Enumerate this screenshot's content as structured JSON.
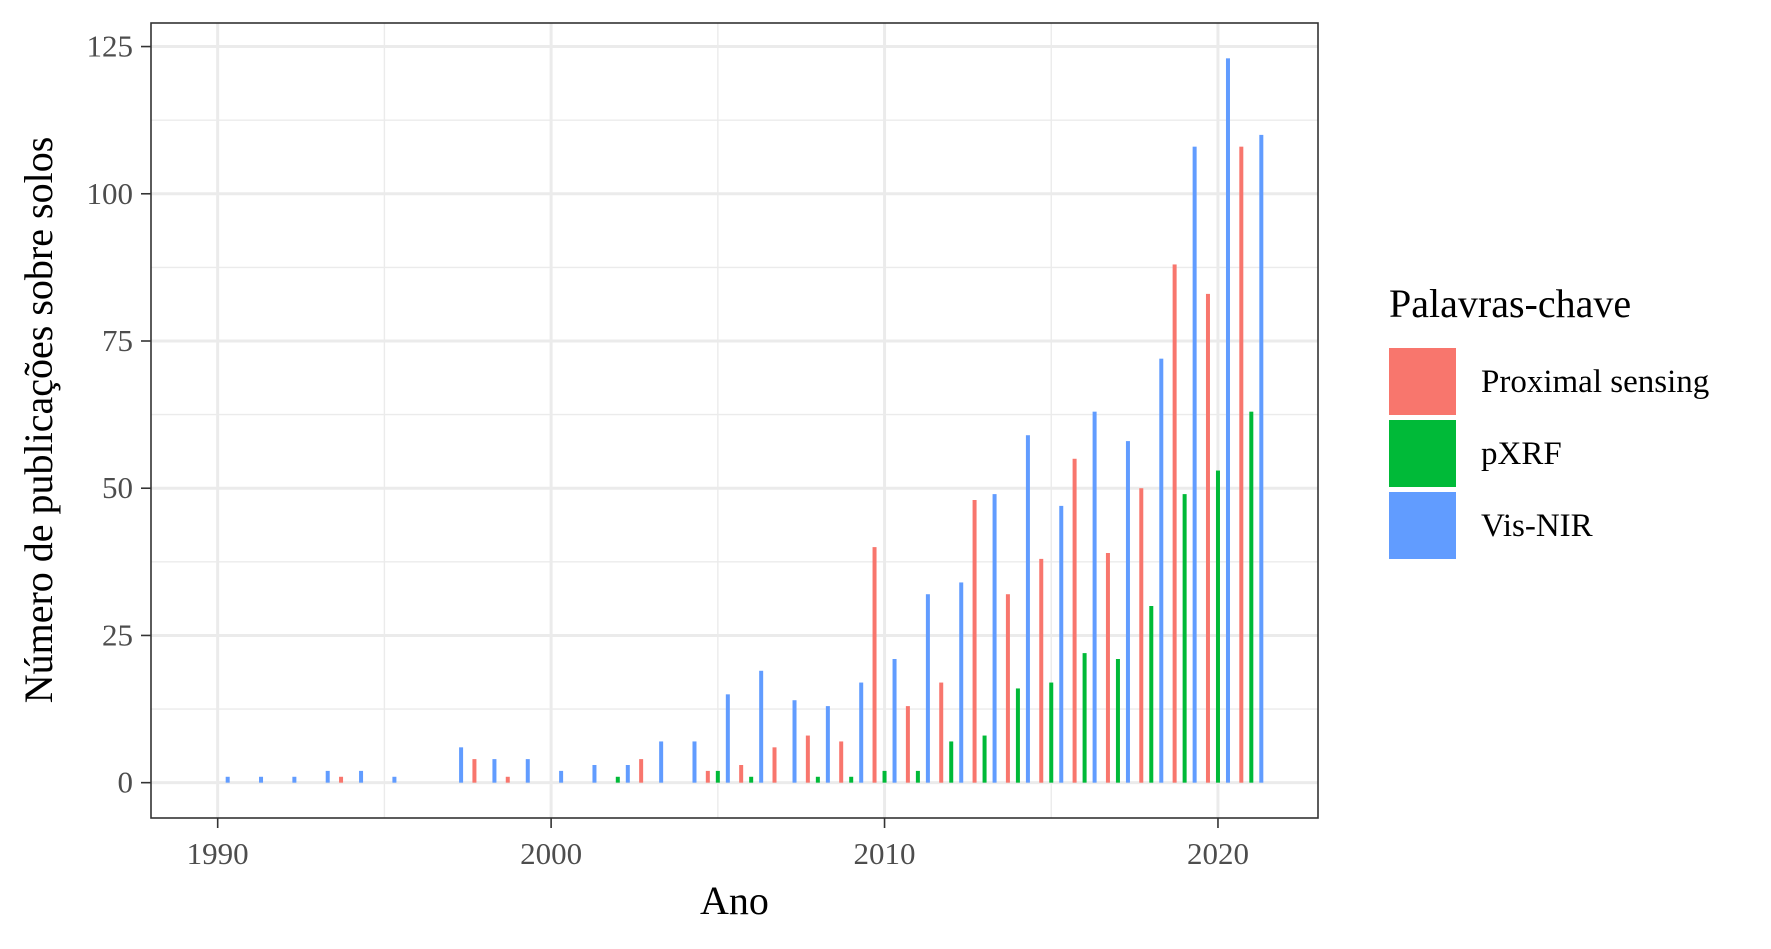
{
  "chart_data": {
    "type": "bar",
    "title": "",
    "xlabel": "Ano",
    "ylabel": "Número de publicações sobre solos",
    "xlim": [
      1988,
      2023
    ],
    "ylim": [
      -6,
      129
    ],
    "x_ticks": [
      {
        "value": 1990,
        "label": "1990"
      },
      {
        "value": 2000,
        "label": "2000"
      },
      {
        "value": 2010,
        "label": "2010"
      },
      {
        "value": 2020,
        "label": "2020"
      }
    ],
    "y_ticks": [
      {
        "value": 0,
        "label": "0"
      },
      {
        "value": 25,
        "label": "25"
      },
      {
        "value": 50,
        "label": "50"
      },
      {
        "value": 75,
        "label": "75"
      },
      {
        "value": 100,
        "label": "100"
      },
      {
        "value": 125,
        "label": "125"
      }
    ],
    "grid": true,
    "legend": {
      "title": "Palavras-chave",
      "placement": "right"
    },
    "series": [
      {
        "name": "Proximal sensing",
        "color": "#F8766D",
        "points": [
          {
            "x": 1994,
            "y": 1
          },
          {
            "x": 1998,
            "y": 4
          },
          {
            "x": 1999,
            "y": 1
          },
          {
            "x": 2003,
            "y": 4
          },
          {
            "x": 2005,
            "y": 2
          },
          {
            "x": 2006,
            "y": 3
          },
          {
            "x": 2007,
            "y": 6
          },
          {
            "x": 2008,
            "y": 8
          },
          {
            "x": 2009,
            "y": 7
          },
          {
            "x": 2010,
            "y": 40
          },
          {
            "x": 2011,
            "y": 13
          },
          {
            "x": 2012,
            "y": 17
          },
          {
            "x": 2013,
            "y": 48
          },
          {
            "x": 2014,
            "y": 32
          },
          {
            "x": 2015,
            "y": 38
          },
          {
            "x": 2016,
            "y": 55
          },
          {
            "x": 2017,
            "y": 39
          },
          {
            "x": 2018,
            "y": 50
          },
          {
            "x": 2019,
            "y": 88
          },
          {
            "x": 2020,
            "y": 83
          },
          {
            "x": 2021,
            "y": 108
          }
        ]
      },
      {
        "name": "pXRF",
        "color": "#00BA38",
        "points": [
          {
            "x": 2002,
            "y": 1
          },
          {
            "x": 2005,
            "y": 2
          },
          {
            "x": 2006,
            "y": 1
          },
          {
            "x": 2008,
            "y": 1
          },
          {
            "x": 2009,
            "y": 1
          },
          {
            "x": 2010,
            "y": 2
          },
          {
            "x": 2011,
            "y": 2
          },
          {
            "x": 2012,
            "y": 7
          },
          {
            "x": 2013,
            "y": 8
          },
          {
            "x": 2014,
            "y": 16
          },
          {
            "x": 2015,
            "y": 17
          },
          {
            "x": 2016,
            "y": 22
          },
          {
            "x": 2017,
            "y": 21
          },
          {
            "x": 2018,
            "y": 30
          },
          {
            "x": 2019,
            "y": 49
          },
          {
            "x": 2020,
            "y": 53
          },
          {
            "x": 2021,
            "y": 63
          }
        ]
      },
      {
        "name": "Vis-NIR",
        "color": "#619CFF",
        "points": [
          {
            "x": 1990,
            "y": 1
          },
          {
            "x": 1991,
            "y": 1
          },
          {
            "x": 1992,
            "y": 1
          },
          {
            "x": 1993,
            "y": 2
          },
          {
            "x": 1994,
            "y": 2
          },
          {
            "x": 1995,
            "y": 1
          },
          {
            "x": 1997,
            "y": 6
          },
          {
            "x": 1998,
            "y": 4
          },
          {
            "x": 1999,
            "y": 4
          },
          {
            "x": 2000,
            "y": 2
          },
          {
            "x": 2001,
            "y": 3
          },
          {
            "x": 2002,
            "y": 3
          },
          {
            "x": 2003,
            "y": 7
          },
          {
            "x": 2004,
            "y": 7
          },
          {
            "x": 2005,
            "y": 15
          },
          {
            "x": 2006,
            "y": 19
          },
          {
            "x": 2007,
            "y": 14
          },
          {
            "x": 2008,
            "y": 13
          },
          {
            "x": 2009,
            "y": 17
          },
          {
            "x": 2010,
            "y": 21
          },
          {
            "x": 2011,
            "y": 32
          },
          {
            "x": 2012,
            "y": 34
          },
          {
            "x": 2013,
            "y": 49
          },
          {
            "x": 2014,
            "y": 59
          },
          {
            "x": 2015,
            "y": 47
          },
          {
            "x": 2016,
            "y": 63
          },
          {
            "x": 2017,
            "y": 58
          },
          {
            "x": 2018,
            "y": 72
          },
          {
            "x": 2019,
            "y": 108
          },
          {
            "x": 2020,
            "y": 123
          },
          {
            "x": 2021,
            "y": 110
          }
        ]
      }
    ]
  }
}
